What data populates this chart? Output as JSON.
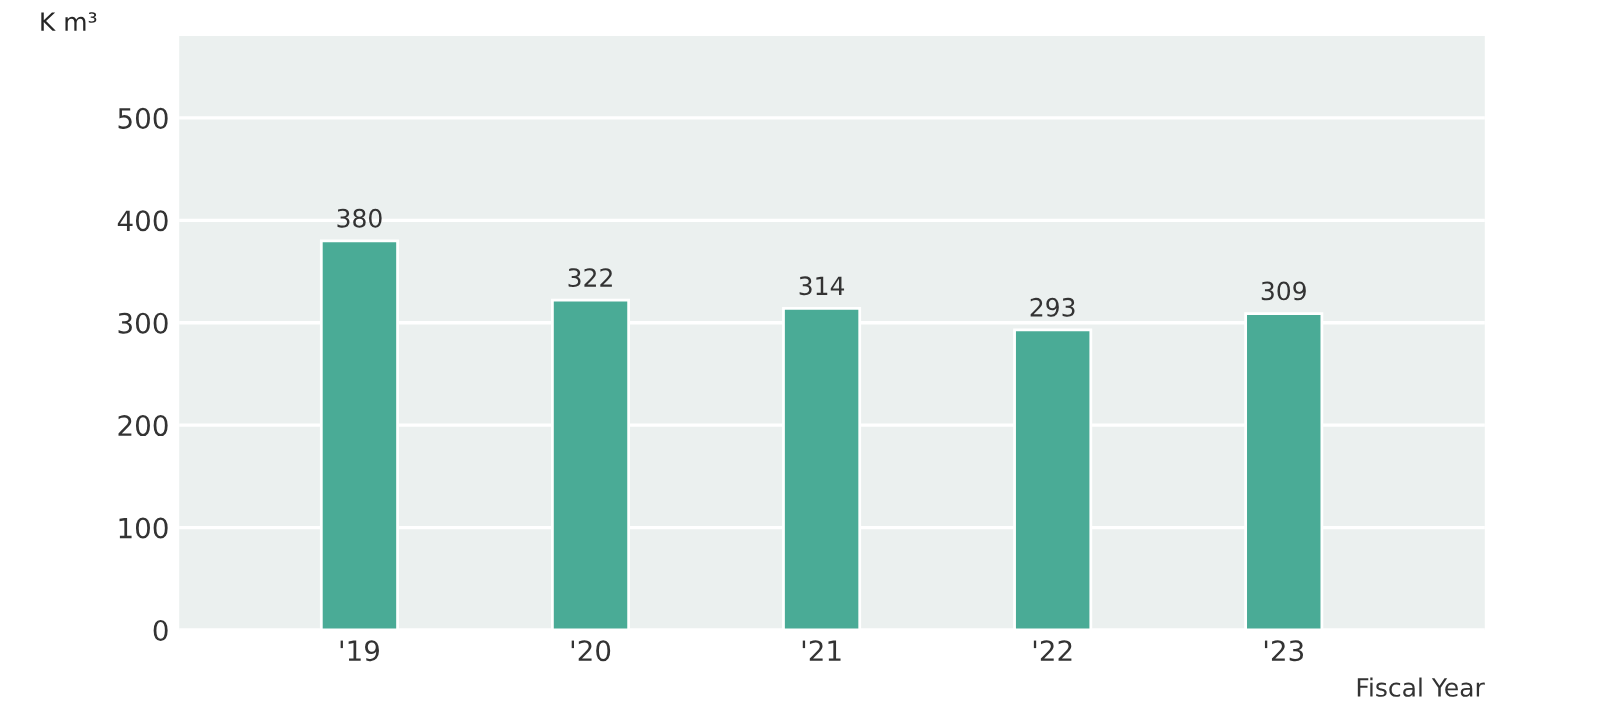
{
  "chart_data": {
    "type": "bar",
    "ylabel": "K m³",
    "xlabel": "Fiscal Year",
    "categories": [
      "'19",
      "'20",
      "'21",
      "'22",
      "'23"
    ],
    "values": [
      380,
      322,
      314,
      293,
      309
    ],
    "value_labels": [
      "380",
      "322",
      "314",
      "293",
      "309"
    ],
    "color": "#4aab96",
    "ylim": [
      0,
      580
    ],
    "yticks": [
      0,
      100,
      200,
      300,
      400,
      500
    ],
    "grid": "y",
    "legend": false
  }
}
